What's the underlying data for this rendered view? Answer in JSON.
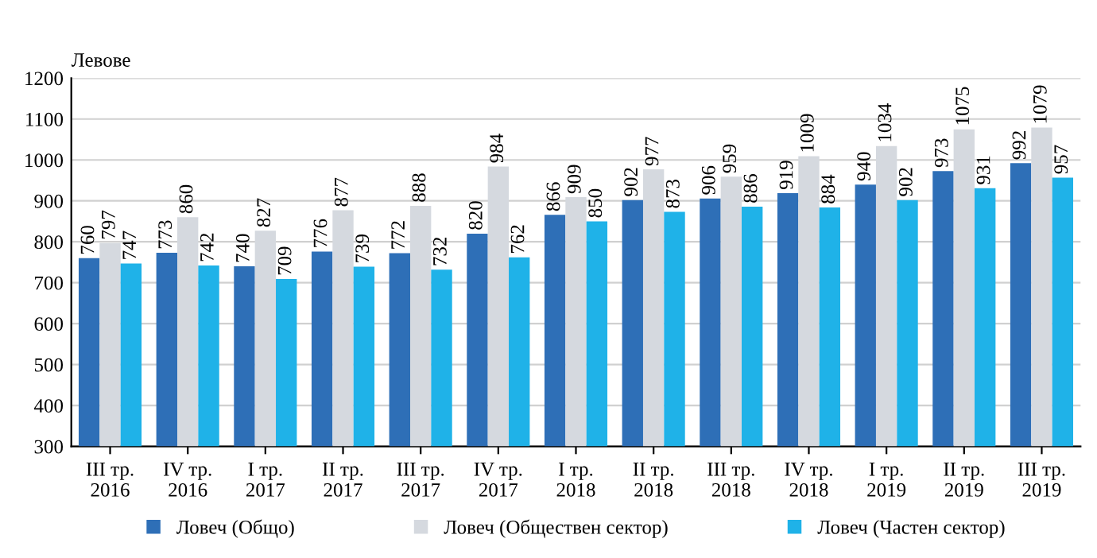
{
  "chart_data": {
    "type": "bar",
    "ylabel": "Левове",
    "categories": [
      "III тр.\n2016",
      "IV тр.\n2016",
      "I тр.\n2017",
      "II тр.\n2017",
      "III тр.\n2017",
      "IV тр.\n2017",
      "I тр.\n2018",
      "II тр.\n2018",
      "III тр.\n2018",
      "IV тр.\n2018",
      "I тр.\n2019",
      "II тр.\n2019",
      "III тр.\n2019"
    ],
    "series": [
      {
        "name": "Ловеч (Общо)",
        "color": "#2e6fb7",
        "values": [
          760,
          773,
          740,
          776,
          772,
          820,
          866,
          902,
          906,
          919,
          940,
          973,
          992
        ]
      },
      {
        "name": "Ловеч (Обществен сектор)",
        "color": "#d5d9df",
        "values": [
          797,
          860,
          827,
          877,
          888,
          984,
          909,
          977,
          959,
          1009,
          1034,
          1075,
          1079
        ]
      },
      {
        "name": "Ловеч (Частен сектор)",
        "color": "#1fb2e8",
        "values": [
          747,
          742,
          709,
          739,
          732,
          762,
          850,
          873,
          886,
          884,
          902,
          931,
          957
        ]
      }
    ],
    "ylim": [
      300,
      1200
    ],
    "yticks": [
      300,
      400,
      500,
      600,
      700,
      800,
      900,
      1000,
      1100,
      1200
    ],
    "grid": "y",
    "legend": "bottom",
    "data_labels": true
  }
}
